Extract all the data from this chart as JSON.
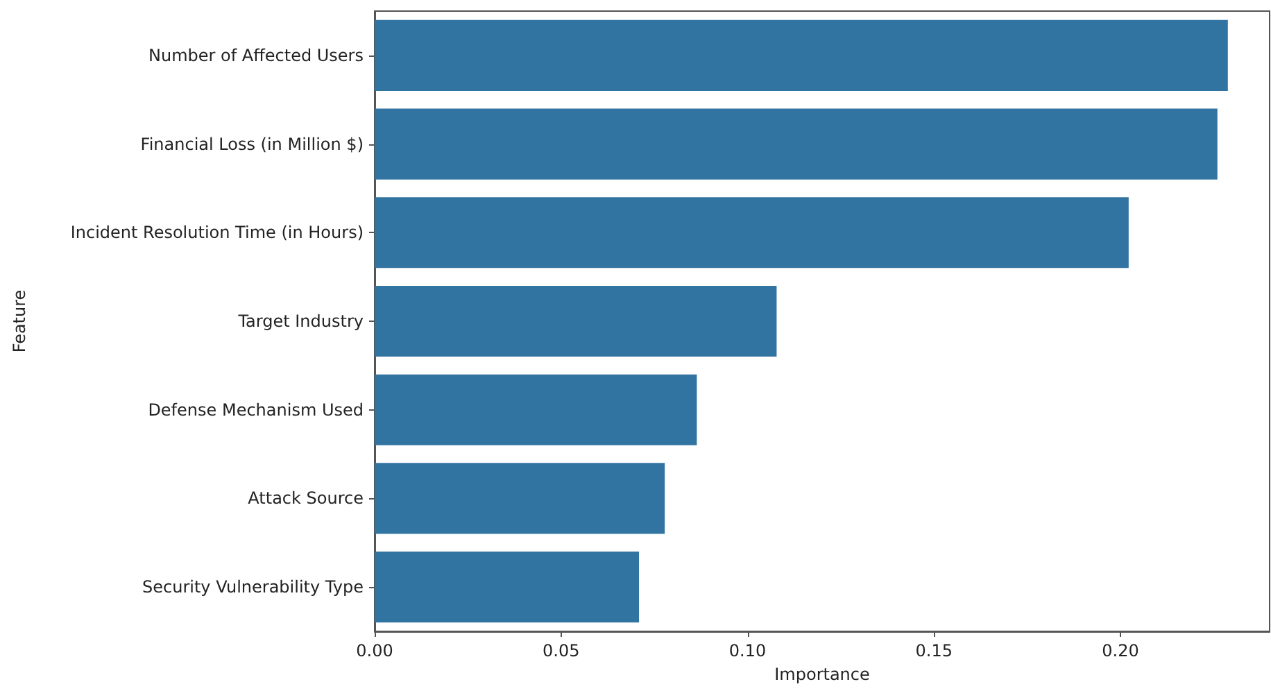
{
  "chart_data": {
    "type": "bar",
    "orientation": "horizontal",
    "xlabel": "Importance",
    "ylabel": "Feature",
    "categories": [
      "Number of Affected Users",
      "Financial Loss (in Million $)",
      "Incident Resolution Time (in Hours)",
      "Target Industry",
      "Defense Mechanism Used",
      "Attack Source",
      "Security Vulnerability Type"
    ],
    "values": [
      0.2288,
      0.226,
      0.2022,
      0.1078,
      0.0864,
      0.0778,
      0.0709
    ],
    "color": "#3274a1",
    "xlim": [
      0,
      0.24
    ],
    "xticks": [
      {
        "value": 0,
        "label": "0.00"
      },
      {
        "value": 0.05,
        "label": "0.05"
      },
      {
        "value": 0.1,
        "label": "0.10"
      },
      {
        "value": 0.15,
        "label": "0.15"
      },
      {
        "value": 0.2,
        "label": "0.20"
      }
    ],
    "grid": false
  }
}
